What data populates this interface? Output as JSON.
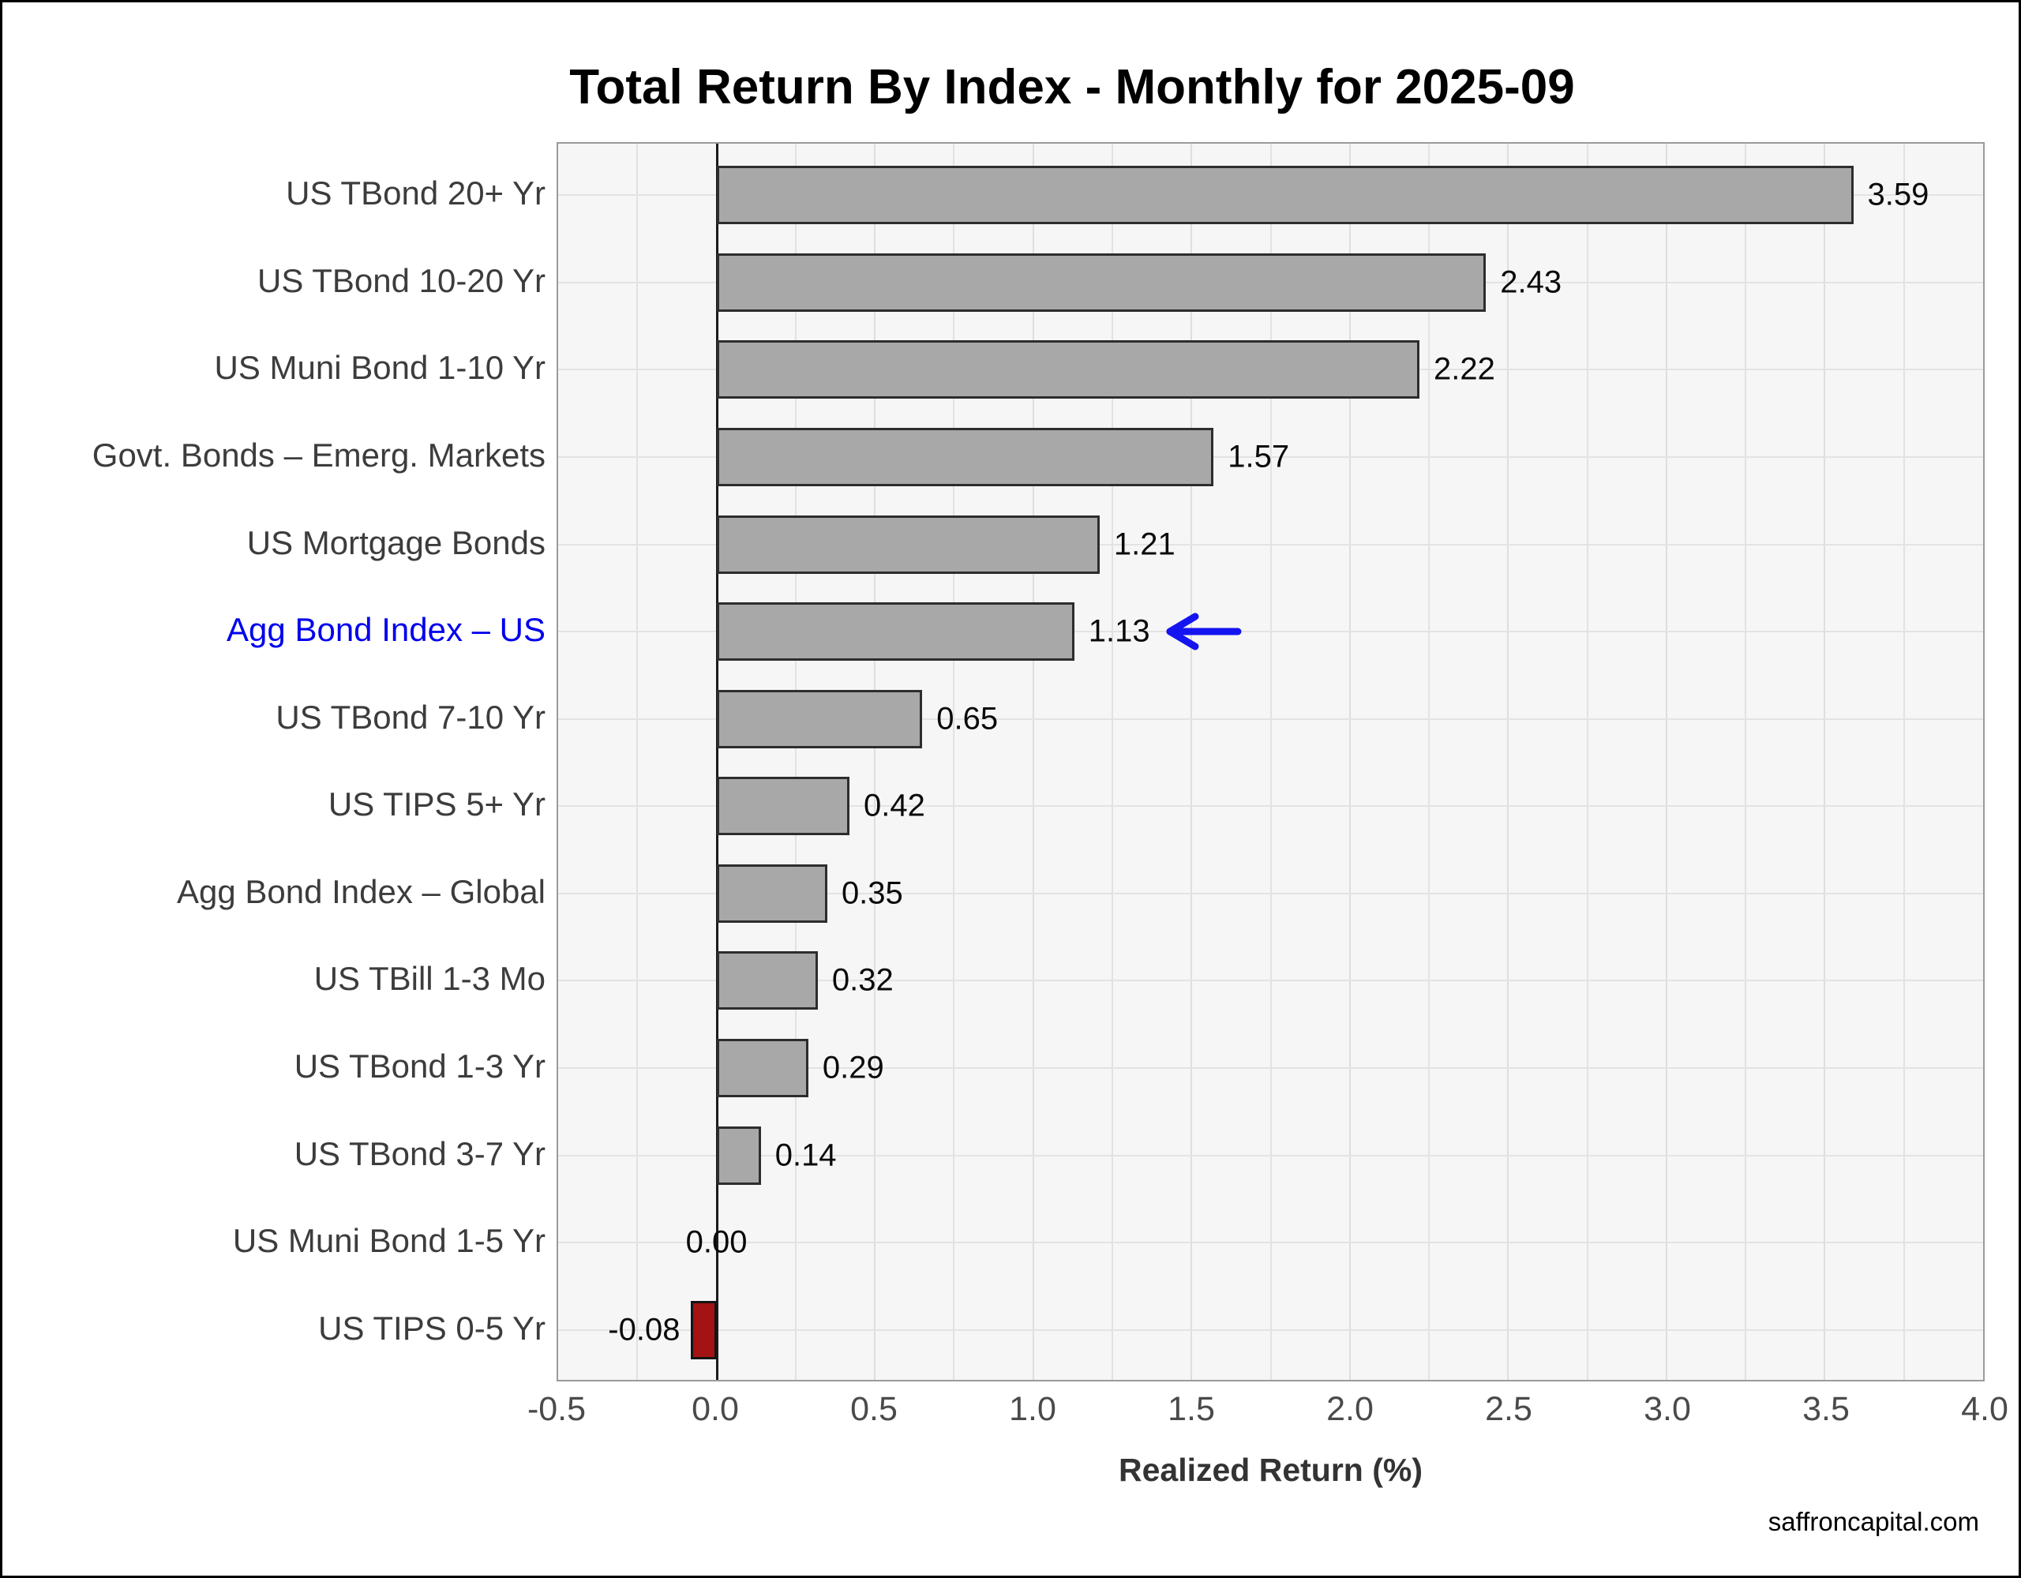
{
  "page": {
    "footer": "saffroncapital.com"
  },
  "chart_data": {
    "type": "bar",
    "orientation": "horizontal",
    "title": "Total Return By Index - Monthly for 2025-09",
    "xlabel": "Realized Return (%)",
    "xlim": [
      -0.5,
      4.0
    ],
    "grid": {
      "vertical_step": 0.25,
      "horizontal": "row-centers",
      "grid_on": true
    },
    "x_ticks": [
      {
        "value": -0.5,
        "label": "-0.5"
      },
      {
        "value": 0.0,
        "label": "0.0"
      },
      {
        "value": 0.5,
        "label": "0.5"
      },
      {
        "value": 1.0,
        "label": "1.0"
      },
      {
        "value": 1.5,
        "label": "1.5"
      },
      {
        "value": 2.0,
        "label": "2.0"
      },
      {
        "value": 2.5,
        "label": "2.5"
      },
      {
        "value": 3.0,
        "label": "3.0"
      },
      {
        "value": 3.5,
        "label": "3.5"
      },
      {
        "value": 4.0,
        "label": "4.0"
      }
    ],
    "categories": [
      {
        "label": "US TBond 20+ Yr",
        "value": 3.59,
        "value_label": "3.59"
      },
      {
        "label": "US TBond 10-20 Yr",
        "value": 2.43,
        "value_label": "2.43"
      },
      {
        "label": "US Muni Bond 1-10 Yr",
        "value": 2.22,
        "value_label": "2.22"
      },
      {
        "label": "Govt. Bonds – Emerg. Markets",
        "value": 1.57,
        "value_label": "1.57"
      },
      {
        "label": "US Mortgage Bonds",
        "value": 1.21,
        "value_label": "1.21"
      },
      {
        "label": "Agg Bond Index – US",
        "value": 1.13,
        "value_label": "1.13",
        "highlight": true,
        "annotation": "arrow-left"
      },
      {
        "label": "US TBond 7-10 Yr",
        "value": 0.65,
        "value_label": "0.65"
      },
      {
        "label": "US TIPS 5+ Yr",
        "value": 0.42,
        "value_label": "0.42"
      },
      {
        "label": "Agg Bond Index – Global",
        "value": 0.35,
        "value_label": "0.35"
      },
      {
        "label": "US TBill 1-3 Mo",
        "value": 0.32,
        "value_label": "0.32"
      },
      {
        "label": "US TBond 1-3 Yr",
        "value": 0.29,
        "value_label": "0.29"
      },
      {
        "label": "US TBond 3-7 Yr",
        "value": 0.14,
        "value_label": "0.14"
      },
      {
        "label": "US Muni Bond 1-5 Yr",
        "value": 0.0,
        "value_label": "0.00"
      },
      {
        "label": "US TIPS 0-5 Yr",
        "value": -0.08,
        "value_label": "-0.08"
      }
    ],
    "colors": {
      "bar_positive": "#a8a8a8",
      "bar_negative": "#a31313",
      "bar_border_positive": "#2d2d2d",
      "bar_border_negative": "#141414",
      "highlight_label": "#0000ee",
      "arrow": "#1414f0",
      "panel_background": "#f6f6f6",
      "gridline": "#e2e2e2",
      "zero_line": "#1b1b1b"
    },
    "legend": null
  }
}
